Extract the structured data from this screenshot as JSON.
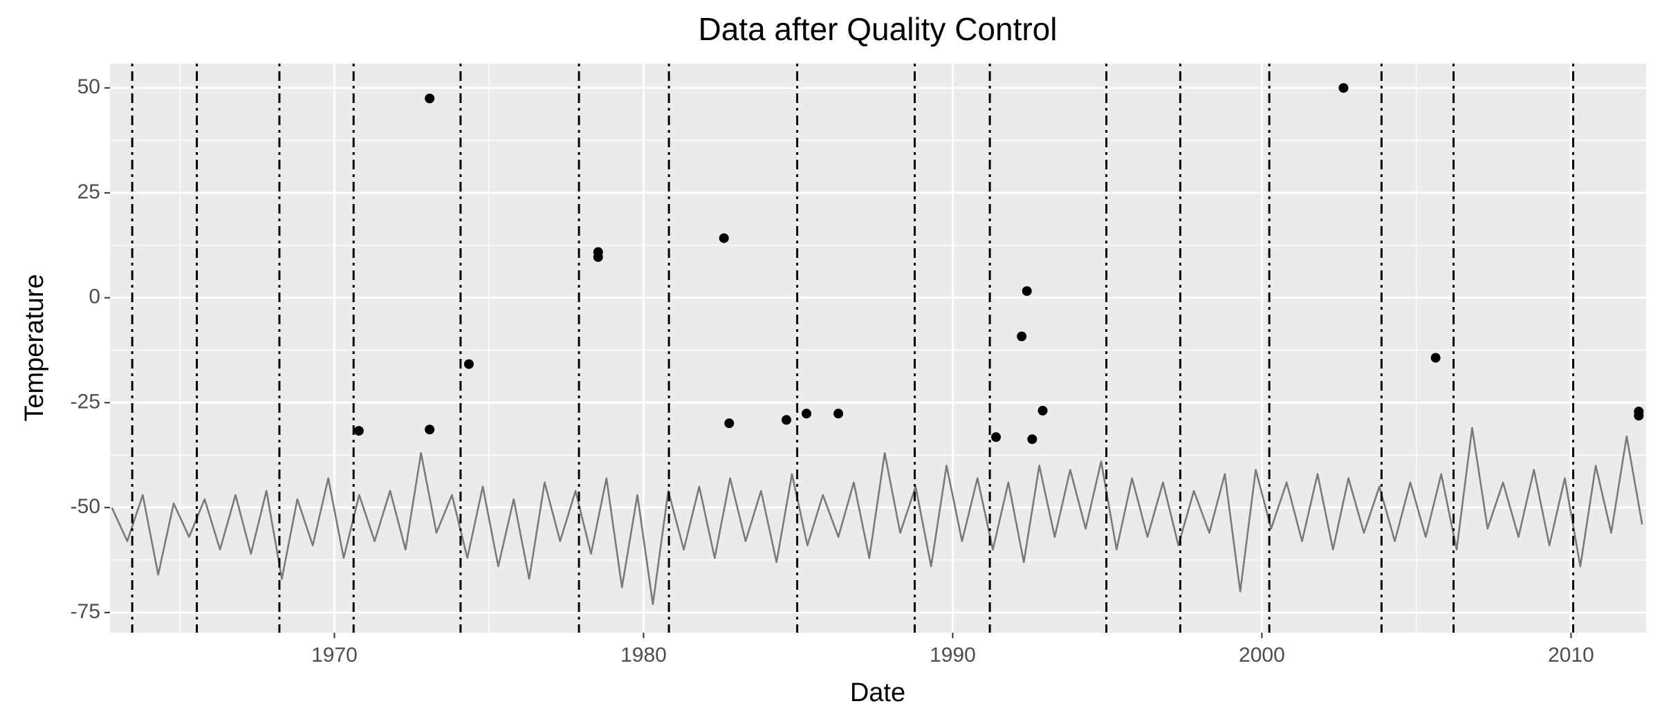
{
  "chart_data": {
    "type": "line",
    "title": "Data after Quality Control",
    "x_label": "Date",
    "y_label": "Temperature",
    "xlim": [
      1962.74,
      2012.43
    ],
    "ylim": [
      -79.8,
      55.8
    ],
    "xticks": [
      1970,
      1980,
      1990,
      2000,
      2010
    ],
    "yticks": [
      50,
      25,
      0,
      -25,
      -50,
      -75
    ],
    "grid": true,
    "series": [
      {
        "color": "#7a7a7a",
        "x": [
          1962.8,
          1963.3,
          1963.8,
          1964.3,
          1964.8,
          1965.3,
          1965.8,
          1966.3,
          1966.8,
          1967.3,
          1967.8,
          1968.3,
          1968.8,
          1969.3,
          1969.8,
          1970.3,
          1970.8,
          1971.3,
          1971.8,
          1972.3,
          1972.8,
          1973.3,
          1973.8,
          1974.3,
          1974.8,
          1975.3,
          1975.8,
          1976.3,
          1976.8,
          1977.3,
          1977.8,
          1978.3,
          1978.8,
          1979.3,
          1979.8,
          1980.3,
          1980.8,
          1981.3,
          1981.8,
          1982.3,
          1982.8,
          1983.3,
          1983.8,
          1984.3,
          1984.8,
          1985.3,
          1985.8,
          1986.3,
          1986.8,
          1987.3,
          1987.8,
          1988.3,
          1988.8,
          1989.3,
          1989.8,
          1990.3,
          1990.8,
          1991.3,
          1991.8,
          1992.3,
          1992.8,
          1993.3,
          1993.8,
          1994.3,
          1994.8,
          1995.3,
          1995.8,
          1996.3,
          1996.8,
          1997.3,
          1997.8,
          1998.3,
          1998.8,
          1999.3,
          1999.8,
          2000.3,
          2000.8,
          2001.3,
          2001.8,
          2002.3,
          2002.8,
          2003.3,
          2003.8,
          2004.3,
          2004.8,
          2005.3,
          2005.8,
          2006.3,
          2006.8,
          2007.3,
          2007.8,
          2008.3,
          2008.8,
          2009.3,
          2009.8,
          2010.3,
          2010.8,
          2011.3,
          2011.8,
          2012.3
        ],
        "values": [
          -50,
          -58,
          -47,
          -66,
          -49,
          -57,
          -48,
          -60,
          -47,
          -61,
          -46,
          -67,
          -48,
          -59,
          -43,
          -62,
          -47,
          -58,
          -46,
          -60,
          -37,
          -56,
          -47,
          -62,
          -45,
          -64,
          -48,
          -67,
          -44,
          -58,
          -46,
          -61,
          -43,
          -69,
          -47,
          -73,
          -46,
          -60,
          -45,
          -62,
          -43,
          -58,
          -46,
          -63,
          -42,
          -59,
          -47,
          -57,
          -44,
          -62,
          -37,
          -56,
          -45,
          -64,
          -40,
          -58,
          -43,
          -60,
          -44,
          -63,
          -40,
          -57,
          -41,
          -55,
          -39,
          -60,
          -43,
          -57,
          -44,
          -59,
          -46,
          -56,
          -42,
          -70,
          -41,
          -55,
          -44,
          -58,
          -42,
          -60,
          -43,
          -56,
          -45,
          -58,
          -44,
          -57,
          -42,
          -60,
          -31,
          -55,
          -44,
          -57,
          -41,
          -59,
          -43,
          -64,
          -40,
          -56,
          -33,
          -54
        ]
      },
      {
        "type": "scatter",
        "color": "#000000",
        "x": [
          1970.79,
          1973.08,
          1973.08,
          1974.35,
          1978.53,
          1978.53,
          1982.6,
          1982.77,
          1984.62,
          1985.27,
          1986.3,
          1991.4,
          1992.23,
          1992.4,
          1992.57,
          1992.91,
          2002.64,
          2005.62,
          2012.19,
          2012.19
        ],
        "values": [
          -31.7,
          47.5,
          -31.4,
          -15.8,
          10.9,
          9.7,
          14.2,
          -29.9,
          -29.1,
          -27.6,
          -27.6,
          -33.2,
          -9.2,
          1.6,
          -33.7,
          -26.9,
          50,
          -14.3,
          -27.1,
          -28.1
        ]
      }
    ],
    "vlines": {
      "color": "#000000",
      "x": [
        1963.46,
        1965.55,
        1968.22,
        1970.62,
        1974.08,
        1977.91,
        1980.82,
        1984.97,
        1988.77,
        1991.2,
        1994.97,
        1997.36,
        2000.24,
        2003.87,
        2006.2,
        2010.07
      ]
    }
  }
}
